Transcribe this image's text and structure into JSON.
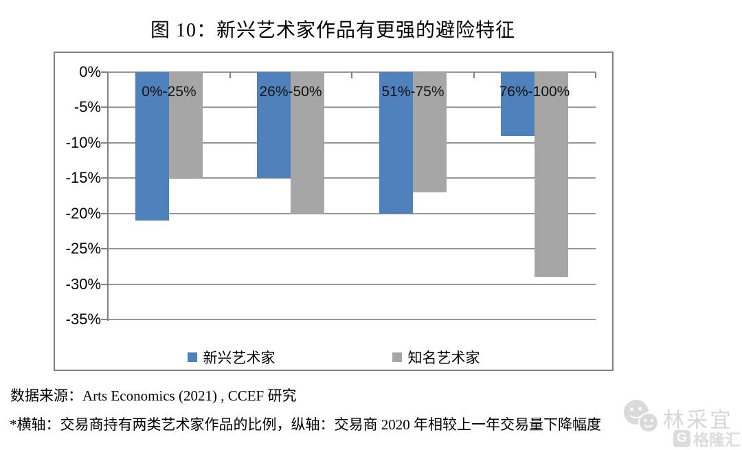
{
  "title": "图 10：新兴艺术家作品有更强的避险特征",
  "chart_data": {
    "type": "bar",
    "categories": [
      "0%-25%",
      "26%-50%",
      "51%-75%",
      "76%-100%"
    ],
    "series": [
      {
        "name": "新兴艺术家",
        "color": "#4F81BD",
        "values": [
          -21,
          -15,
          -20,
          -9
        ]
      },
      {
        "name": "知名艺术家",
        "color": "#A6A6A6",
        "values": [
          -15,
          -20,
          -17,
          -29
        ]
      }
    ],
    "title": "图 10：新兴艺术家作品有更强的避险特征",
    "xlabel": "交易商持有两类艺术家作品的比例",
    "ylabel": "交易商 2020 年相较上一年交易量下降幅度",
    "ylim": [
      -35,
      0
    ],
    "ytick_step": 5,
    "ytick_labels": [
      "0%",
      "-5%",
      "-10%",
      "-15%",
      "-20%",
      "-25%",
      "-30%",
      "-35%"
    ],
    "grid": true,
    "legend_position": "bottom"
  },
  "source_line": "数据来源：Arts Economics (2021) , CCEF 研究",
  "footnote": "*横轴：交易商持有两类艺术家作品的比例，纵轴：交易商 2020 年相较上一年交易量下降幅度",
  "watermark": {
    "icon": "wechat-icon",
    "author": "林采宜",
    "brand": "格隆汇",
    "brand_letter": "G"
  },
  "colors": {
    "bar_blue": "#4F81BD",
    "bar_gray": "#A6A6A6",
    "grid": "#969696",
    "border": "#808080",
    "watermark_gray": "#dcdcdc"
  }
}
